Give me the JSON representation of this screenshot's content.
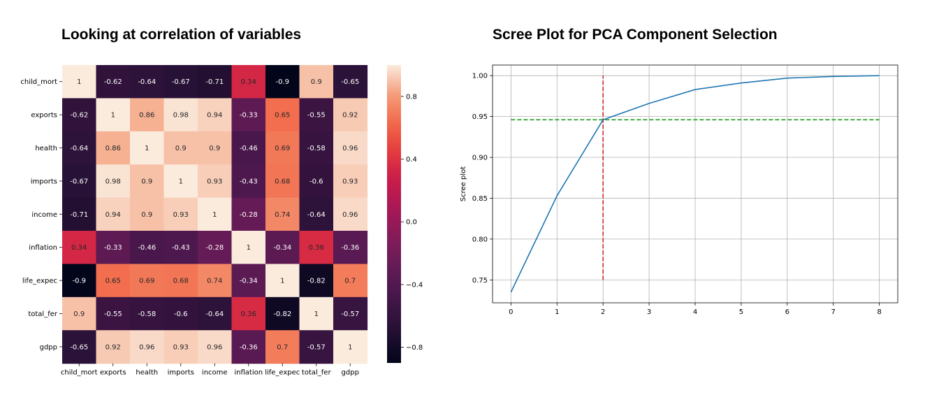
{
  "titles": {
    "left": "Looking at correlation of variables",
    "right": "Scree Plot for PCA Component Selection"
  },
  "colors": {
    "scree_line": "#1f77b4",
    "threshold_hline": "#2ca02c",
    "threshold_vline": "#d62728",
    "grid": "#b0b0b0"
  },
  "chart_data": [
    {
      "type": "heatmap",
      "title": "Looking at correlation of variables",
      "variables": [
        "child_mort",
        "exports",
        "health",
        "imports",
        "income",
        "inflation",
        "life_expec",
        "total_fer",
        "gdpp"
      ],
      "matrix": [
        [
          1,
          -0.62,
          -0.64,
          -0.67,
          -0.71,
          0.34,
          -0.9,
          0.9,
          -0.65
        ],
        [
          -0.62,
          1,
          0.86,
          0.98,
          0.94,
          -0.33,
          0.65,
          -0.55,
          0.92
        ],
        [
          -0.64,
          0.86,
          1,
          0.9,
          0.9,
          -0.46,
          0.69,
          -0.58,
          0.96
        ],
        [
          -0.67,
          0.98,
          0.9,
          1,
          0.93,
          -0.43,
          0.68,
          -0.6,
          0.93
        ],
        [
          -0.71,
          0.94,
          0.9,
          0.93,
          1,
          -0.28,
          0.74,
          -0.64,
          0.96
        ],
        [
          0.34,
          -0.33,
          -0.46,
          -0.43,
          -0.28,
          1,
          -0.34,
          0.36,
          -0.36
        ],
        [
          -0.9,
          0.65,
          0.69,
          0.68,
          0.74,
          -0.34,
          1,
          -0.82,
          0.7
        ],
        [
          0.9,
          -0.55,
          -0.58,
          -0.6,
          -0.64,
          0.36,
          -0.82,
          1,
          -0.57
        ],
        [
          -0.65,
          0.92,
          0.96,
          0.93,
          0.96,
          -0.36,
          0.7,
          -0.57,
          1
        ]
      ],
      "colorbar": {
        "vmin": -0.9,
        "vmax": 1.0,
        "ticks": [
          0.8,
          0.4,
          0.0,
          -0.4,
          -0.8
        ],
        "tick_labels": [
          "0.8",
          "0.4",
          "0.0",
          "−0.4",
          "−0.8"
        ]
      }
    },
    {
      "type": "line",
      "title": "Scree Plot for PCA Component Selection",
      "xlabel": "",
      "ylabel": "Scree plot",
      "x": [
        0,
        1,
        2,
        3,
        4,
        5,
        6,
        7,
        8
      ],
      "y": [
        0.735,
        0.853,
        0.946,
        0.966,
        0.983,
        0.991,
        0.997,
        0.999,
        1.0
      ],
      "xticks": [
        0,
        1,
        2,
        3,
        4,
        5,
        6,
        7,
        8
      ],
      "yticks": [
        0.75,
        0.8,
        0.85,
        0.9,
        0.95,
        1.0
      ],
      "ytick_labels": [
        "0.75",
        "0.80",
        "0.85",
        "0.90",
        "0.95",
        "1.00"
      ],
      "xlim": [
        -0.4,
        8.4
      ],
      "ylim": [
        0.722,
        1.013
      ],
      "grid": true,
      "hline": {
        "y": 0.946,
        "x_from": 0,
        "x_to": 8,
        "style": "dashed"
      },
      "vline": {
        "x": 2,
        "y_from": 0.75,
        "y_to": 1.0,
        "style": "dashed"
      }
    }
  ]
}
